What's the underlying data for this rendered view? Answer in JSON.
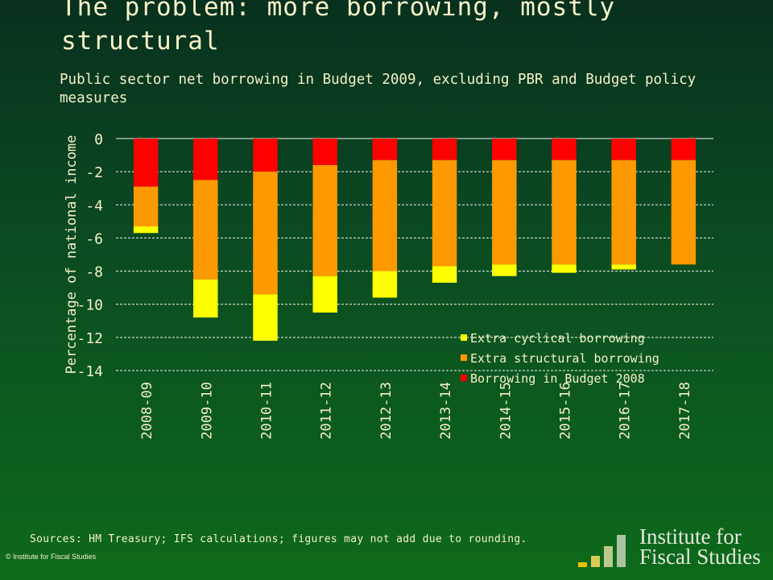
{
  "slide": {
    "title": "The problem: more borrowing, mostly structural",
    "subtitle": "Public sector net borrowing in Budget 2009, excluding PBR and Budget policy measures",
    "sources": "Sources: HM Treasury; IFS calculations; figures may not add due to rounding.",
    "copyright": "© Institute for Fiscal Studies",
    "logo_line1": "Institute for",
    "logo_line2": "Fiscal Studies"
  },
  "chart_data": {
    "type": "bar",
    "stacked": true,
    "title": "",
    "xlabel": "",
    "ylabel": "Percentage of national income",
    "ylim": [
      -14,
      0
    ],
    "yticks": [
      0,
      -2,
      -4,
      -6,
      -8,
      -10,
      -12,
      -14
    ],
    "grid": true,
    "legend_position": "bottom-right",
    "categories": [
      "2008-09",
      "2009-10",
      "2010-11",
      "2011-12",
      "2012-13",
      "2013-14",
      "2014-15",
      "2015-16",
      "2016-17",
      "2017-18"
    ],
    "series": [
      {
        "name": "Borrowing in Budget 2008",
        "color": "#ff0000",
        "values": [
          -2.9,
          -2.5,
          -2.0,
          -1.6,
          -1.3,
          -1.3,
          -1.3,
          -1.3,
          -1.3,
          -1.3
        ]
      },
      {
        "name": "Extra structural borrowing",
        "color": "#ff9900",
        "values": [
          -2.4,
          -6.0,
          -7.4,
          -6.7,
          -6.7,
          -6.4,
          -6.3,
          -6.3,
          -6.3,
          -6.3
        ]
      },
      {
        "name": "Extra cyclical borrowing",
        "color": "#ffff00",
        "values": [
          -0.4,
          -2.3,
          -2.8,
          -2.2,
          -1.6,
          -1.0,
          -0.7,
          -0.5,
          -0.3,
          0.0
        ]
      }
    ],
    "legend_order": [
      "Extra cyclical borrowing",
      "Extra structural borrowing",
      "Borrowing in Budget 2008"
    ]
  }
}
